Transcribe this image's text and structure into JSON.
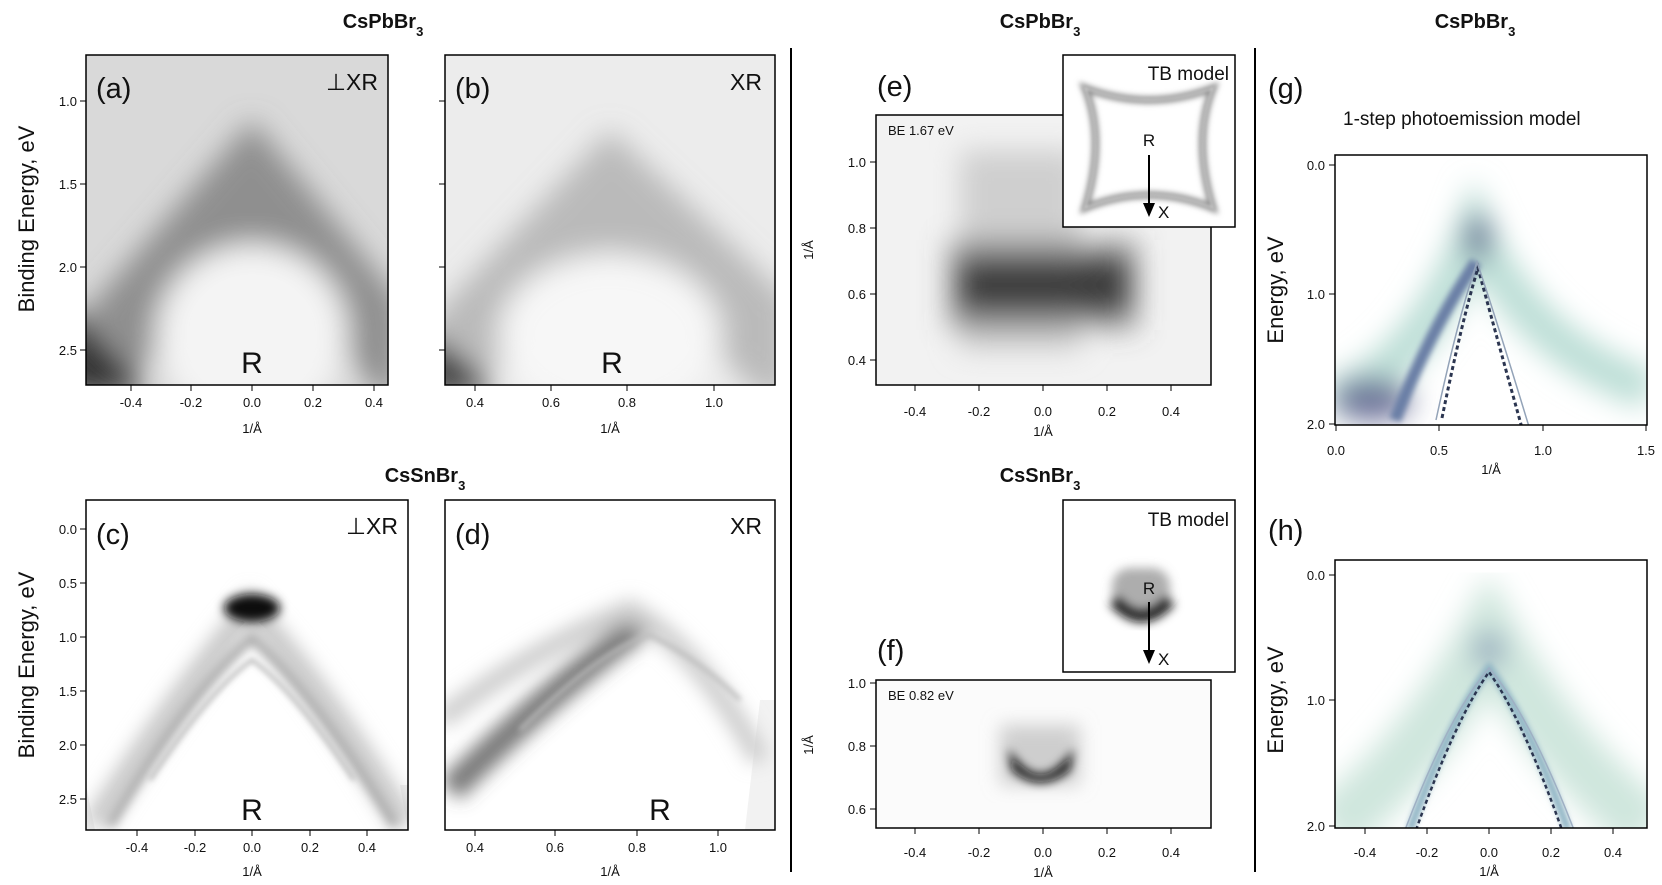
{
  "titles": {
    "left_top": "CsPbBr",
    "left_bottom": "CsSnBr",
    "mid_top": "CsPbBr",
    "mid_bottom": "CsSnBr",
    "right_top": "CsPbBr",
    "sub": "3"
  },
  "ylabels": {
    "binding": "Binding Energy, eV",
    "energy": "Energy, eV",
    "inv_a": "1/Å"
  },
  "xlabel": "1/Å",
  "panels": {
    "a": {
      "label": "(a)",
      "corner": "⊥XR",
      "point": "R",
      "yticks": [
        "1.0",
        "1.5",
        "2.0",
        "2.5"
      ],
      "xticks": [
        "-0.4",
        "-0.2",
        "0.0",
        "0.2",
        "0.4"
      ]
    },
    "b": {
      "label": "(b)",
      "corner": "XR",
      "point": "R",
      "xticks": [
        "0.4",
        "0.6",
        "0.8",
        "1.0"
      ]
    },
    "c": {
      "label": "(c)",
      "corner": "⊥XR",
      "point": "R",
      "yticks": [
        "0.0",
        "0.5",
        "1.0",
        "1.5",
        "2.0",
        "2.5"
      ],
      "xticks": [
        "-0.4",
        "-0.2",
        "0.0",
        "0.2",
        "0.4"
      ]
    },
    "d": {
      "label": "(d)",
      "corner": "XR",
      "point": "R",
      "xticks": [
        "0.4",
        "0.6",
        "0.8",
        "1.0"
      ]
    },
    "e": {
      "label": "(e)",
      "be": "BE 1.67 eV",
      "yticks": [
        "1.0",
        "0.8",
        "0.6",
        "0.4"
      ],
      "xticks": [
        "-0.4",
        "-0.2",
        "0.0",
        "0.2",
        "0.4"
      ],
      "inset_title": "TB model",
      "inset_r": "R",
      "inset_x": "X"
    },
    "f": {
      "label": "(f)",
      "be": "BE 0.82 eV",
      "yticks": [
        "1.0",
        "0.8",
        "0.6"
      ],
      "xticks": [
        "-0.4",
        "-0.2",
        "0.0",
        "0.2",
        "0.4"
      ],
      "inset_title": "TB model",
      "inset_r": "R",
      "inset_x": "X"
    },
    "g": {
      "label": "(g)",
      "note": "1-step photoemission model",
      "yticks": [
        "0.0",
        "1.0",
        "2.0"
      ],
      "xticks": [
        "0.0",
        "0.5",
        "1.0",
        "1.5"
      ]
    },
    "h": {
      "label": "(h)",
      "yticks": [
        "0.0",
        "1.0",
        "2.0"
      ],
      "xticks": [
        "-0.4",
        "-0.2",
        "0.0",
        "0.2",
        "0.4"
      ]
    }
  }
}
